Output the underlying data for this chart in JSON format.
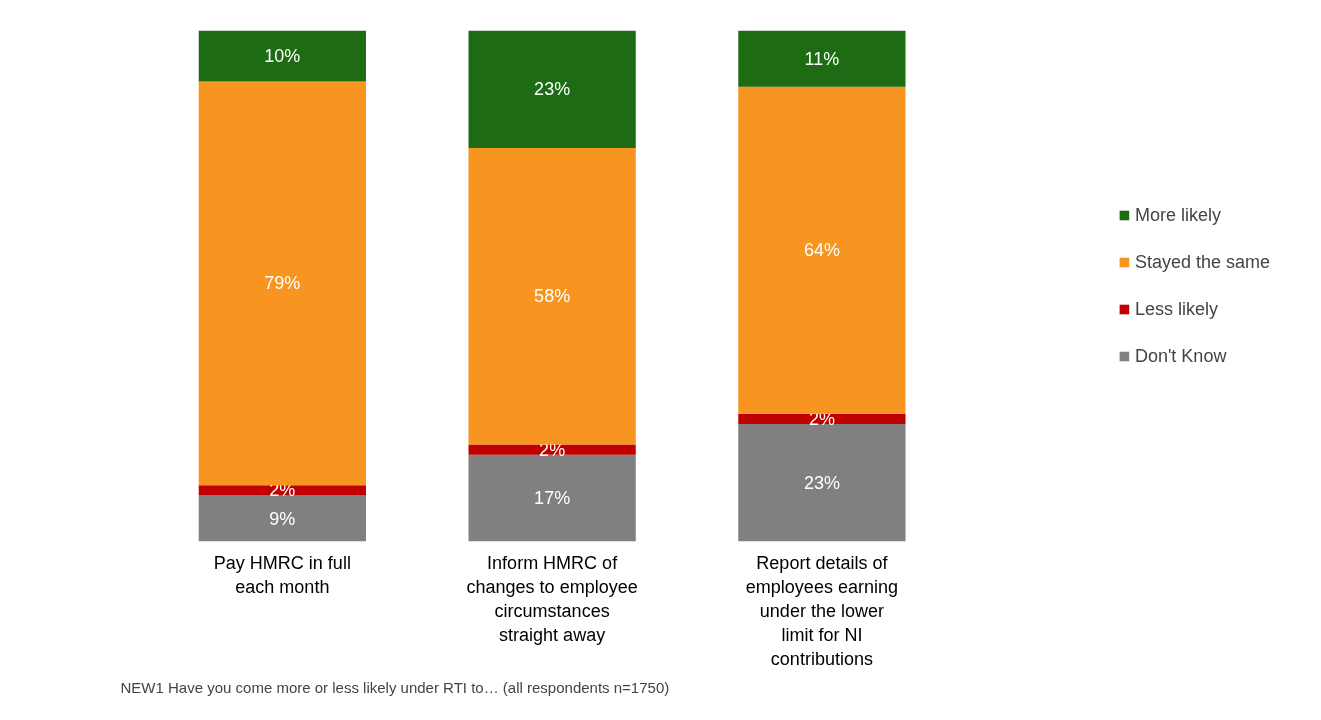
{
  "chart_data": {
    "type": "bar",
    "stacked": true,
    "legend": "right",
    "categories": [
      "Pay HMRC in full each month",
      "Inform HMRC of changes to employee circumstances straight away",
      "Report details of employees earning under the lower limit for NI contributions"
    ],
    "series": [
      {
        "name": "Don't Know",
        "color": "#808080",
        "values": [
          9,
          17,
          23
        ],
        "value_labels": [
          "9%",
          "17%",
          "23%"
        ]
      },
      {
        "name": "Less likely",
        "color": "#c00000",
        "values": [
          2,
          2,
          2
        ],
        "value_labels": [
          "2%",
          "2%",
          "2%"
        ]
      },
      {
        "name": "Stayed the same",
        "color": "#f79520",
        "values": [
          79,
          58,
          64
        ],
        "value_labels": [
          "79%",
          "58%",
          "64%"
        ]
      },
      {
        "name": "More likely",
        "color": "#1d6b12",
        "values": [
          10,
          23,
          11
        ],
        "value_labels": [
          "10%",
          "23%",
          "11%"
        ]
      }
    ],
    "annotations": [
      "NEW1 Have  you come more or less likely under RTI to… (all respondents  n=1750)"
    ]
  }
}
